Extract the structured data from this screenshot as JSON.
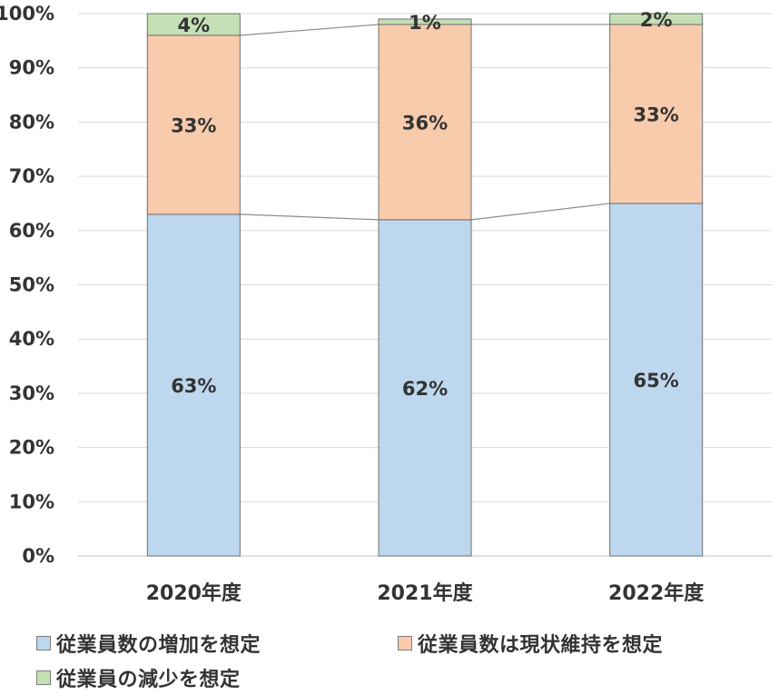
{
  "chart_data": {
    "type": "bar",
    "stacked": true,
    "percent": true,
    "categories": [
      "2020年度",
      "2021年度",
      "2022年度"
    ],
    "series": [
      {
        "name": "従業員数の増加を想定",
        "values": [
          63,
          62,
          65
        ],
        "labels": [
          "63%",
          "62%",
          "65%"
        ],
        "color": "#bdd7ee"
      },
      {
        "name": "従業員数は現状維持を想定",
        "values": [
          33,
          36,
          33
        ],
        "labels": [
          "33%",
          "36%",
          "33%"
        ],
        "color": "#f8cbad"
      },
      {
        "name": "従業員の減少を想定",
        "values": [
          4,
          1,
          2
        ],
        "labels": [
          "4%",
          "1%",
          "2%"
        ],
        "color": "#c5e0b4"
      }
    ],
    "ylim": [
      0,
      100
    ],
    "yticks": [
      "0%",
      "10%",
      "20%",
      "30%",
      "40%",
      "50%",
      "60%",
      "70%",
      "80%",
      "90%",
      "100%"
    ],
    "grid": true,
    "series_lines": true,
    "legend_position": "bottom",
    "xlabel": "",
    "ylabel": "",
    "title": ""
  }
}
